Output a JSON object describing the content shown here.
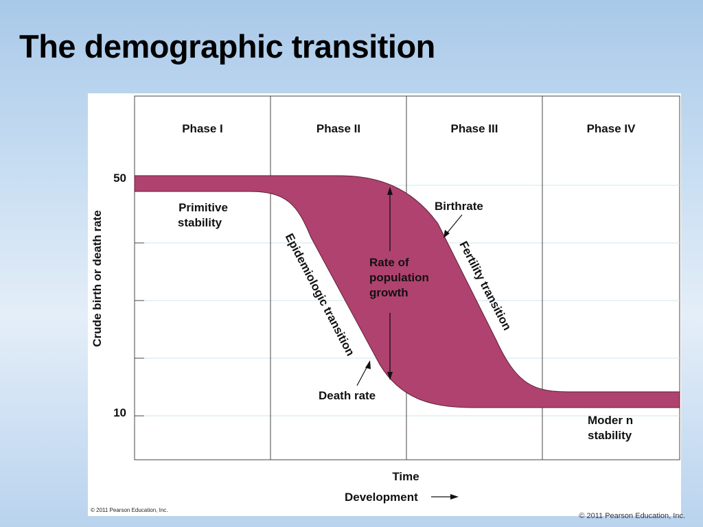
{
  "slide": {
    "title": "The demographic transition",
    "footer": "© 2011 Pearson Education, Inc."
  },
  "diagram": {
    "phases": [
      "Phase I",
      "Phase II",
      "Phase III",
      "Phase IV"
    ],
    "y_axis_label": "Crude birth or death rate",
    "y_ticks": [
      "50",
      "10"
    ],
    "x_axis_label": "Time",
    "development_label": "Development",
    "labels": {
      "primitive_stability_1": "Primitive",
      "primitive_stability_2": "stability",
      "epidemiologic_transition": "Epidemiologic transition",
      "rate_of_growth_1": "Rate of",
      "rate_of_growth_2": "population",
      "rate_of_growth_3": "growth",
      "birthrate": "Birthrate",
      "fertility_transition": "Fertility transition",
      "death_rate": "Death rate",
      "modern_stability_1": "Moder n",
      "modern_stability_2": "stability"
    },
    "copyright": "© 2011 Pearson Education, Inc.",
    "colors": {
      "growth_band": "#b0426f",
      "grid_line": "#cfe6ee",
      "frame_line": "#444444"
    }
  }
}
